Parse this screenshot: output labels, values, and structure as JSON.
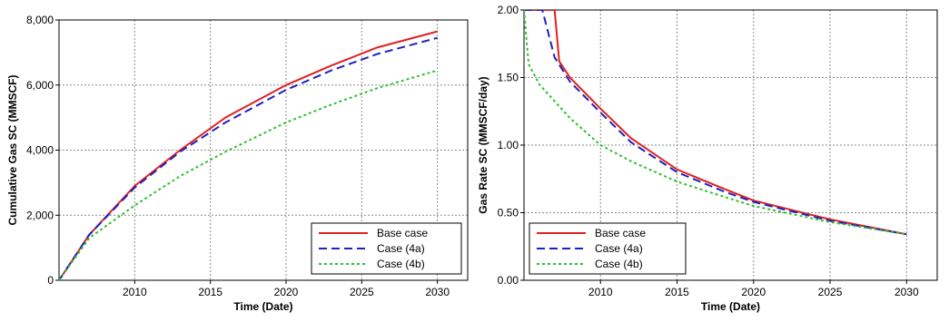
{
  "chart_data": [
    {
      "type": "line",
      "xlabel": "Time (Date)",
      "ylabel": "Cumulative Gas SC (MMSCF)",
      "xlim": [
        2005,
        2032
      ],
      "ylim": [
        0,
        8000
      ],
      "xticks": [
        2010,
        2015,
        2020,
        2025,
        2030
      ],
      "x_tick_labels": [
        "2010",
        "2015",
        "2020",
        "2025",
        "2030"
      ],
      "yticks": [
        0,
        2000,
        4000,
        6000,
        8000
      ],
      "y_tick_labels": [
        "0",
        "2,000",
        "4,000",
        "6,000",
        "8,000"
      ],
      "grid": true,
      "legend_position": "bottom-right",
      "series": [
        {
          "name": "Base case",
          "color": "#e02020",
          "style": "solid",
          "x": [
            2005,
            2007,
            2010,
            2013,
            2016,
            2020,
            2023,
            2026,
            2030
          ],
          "y": [
            0,
            1400,
            2900,
            4000,
            5000,
            6000,
            6600,
            7150,
            7650
          ]
        },
        {
          "name": "Case (4a)",
          "color": "#2020c0",
          "style": "dashed",
          "x": [
            2005,
            2007,
            2010,
            2013,
            2016,
            2020,
            2023,
            2026,
            2030
          ],
          "y": [
            0,
            1400,
            2850,
            3950,
            4850,
            5850,
            6450,
            6950,
            7450
          ]
        },
        {
          "name": "Case (4b)",
          "color": "#30c030",
          "style": "dotted",
          "x": [
            2005,
            2007,
            2010,
            2013,
            2016,
            2020,
            2023,
            2026,
            2030
          ],
          "y": [
            0,
            1300,
            2300,
            3200,
            3950,
            4850,
            5400,
            5900,
            6450
          ]
        }
      ]
    },
    {
      "type": "line",
      "xlabel": "Time (Date)",
      "ylabel": "Gas Rate SC (MMSCF/day)",
      "xlim": [
        2005,
        2032
      ],
      "ylim": [
        0,
        2
      ],
      "xticks": [
        2010,
        2015,
        2020,
        2025,
        2030
      ],
      "x_tick_labels": [
        "2010",
        "2015",
        "2020",
        "2025",
        "2030"
      ],
      "yticks": [
        0,
        0.5,
        1,
        1.5,
        2
      ],
      "y_tick_labels": [
        "0.00",
        "0.50",
        "1.00",
        "1.50",
        "2.00"
      ],
      "grid": true,
      "legend_position": "bottom-left",
      "series": [
        {
          "name": "Base case",
          "color": "#e02020",
          "style": "solid",
          "x": [
            2005,
            2007,
            2007.3,
            2008,
            2010,
            2012,
            2015,
            2018,
            2020,
            2025,
            2030
          ],
          "y": [
            2.0,
            2.0,
            1.62,
            1.5,
            1.27,
            1.05,
            0.82,
            0.68,
            0.59,
            0.45,
            0.34
          ]
        },
        {
          "name": "Case (4a)",
          "color": "#2020c0",
          "style": "dashed",
          "x": [
            2005,
            2006.2,
            2007,
            2008,
            2010,
            2012,
            2015,
            2018,
            2020,
            2025,
            2030
          ],
          "y": [
            2.0,
            2.0,
            1.65,
            1.47,
            1.24,
            1.02,
            0.8,
            0.66,
            0.58,
            0.44,
            0.34
          ]
        },
        {
          "name": "Case (4b)",
          "color": "#30c030",
          "style": "dotted",
          "x": [
            2005,
            2005.3,
            2006,
            2008,
            2010,
            2012,
            2015,
            2018,
            2020,
            2025,
            2030
          ],
          "y": [
            2.0,
            1.6,
            1.45,
            1.2,
            1.0,
            0.88,
            0.73,
            0.62,
            0.55,
            0.43,
            0.34
          ]
        }
      ]
    }
  ]
}
